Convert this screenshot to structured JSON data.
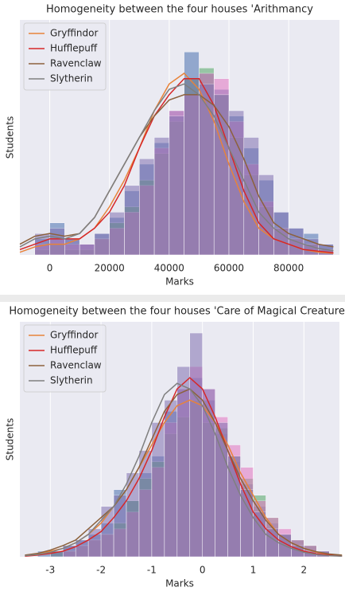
{
  "chart_data": [
    {
      "type": "histogram",
      "title": "Homogeneity between the four houses 'Arithmancy",
      "x_label": "Marks",
      "y_label": "Students",
      "bins": [
        -5000,
        0,
        5000,
        10000,
        15000,
        20000,
        25000,
        30000,
        35000,
        40000,
        45000,
        50000,
        55000,
        60000,
        65000,
        70000,
        75000,
        80000,
        85000,
        90000,
        95000
      ],
      "histograms": [
        {
          "color": "#4c72b0",
          "values": [
            3,
            6,
            3,
            2,
            4,
            7,
            12,
            17,
            21,
            27,
            38,
            34,
            31,
            26,
            20,
            14,
            8,
            5,
            4,
            2
          ]
        },
        {
          "color": "#55a868",
          "values": [
            1,
            2,
            1,
            1,
            3,
            6,
            9,
            14,
            19,
            25,
            33,
            35,
            30,
            22,
            15,
            9,
            5,
            3,
            2,
            1
          ]
        },
        {
          "color": "#e377c2",
          "values": [
            2,
            3,
            2,
            2,
            3,
            5,
            8,
            13,
            20,
            27,
            30,
            34,
            33,
            25,
            17,
            10,
            5,
            3,
            2,
            1
          ]
        },
        {
          "color": "#8172b2",
          "values": [
            4,
            5,
            3,
            2,
            4,
            8,
            13,
            18,
            22,
            26,
            33,
            32,
            30,
            27,
            22,
            15,
            8,
            5,
            3,
            2
          ]
        }
      ],
      "x": [
        -10000,
        -5000,
        0,
        5000,
        10000,
        15000,
        20000,
        25000,
        30000,
        35000,
        40000,
        45000,
        50000,
        55000,
        60000,
        65000,
        70000,
        75000,
        80000,
        85000,
        90000,
        95000
      ],
      "series": [
        {
          "name": "Gryffindor",
          "color": "#e8833a",
          "values": [
            0.5,
            1.5,
            2,
            2,
            3,
            5,
            9,
            14,
            20,
            27,
            32,
            34,
            31,
            25,
            17,
            10,
            5,
            3,
            2,
            1,
            0.5,
            0.3
          ]
        },
        {
          "name": "Hufflepuff",
          "color": "#d62728",
          "values": [
            1,
            2,
            3,
            3,
            3,
            5,
            8,
            13,
            20,
            26,
            30,
            33,
            33,
            28,
            20,
            12,
            6,
            3,
            2,
            1,
            0.7,
            0.4
          ]
        },
        {
          "name": "Ravenclaw",
          "color": "#8c613c",
          "values": [
            2,
            3.5,
            4,
            3.5,
            4,
            7,
            12,
            17,
            22,
            26,
            29,
            30,
            30,
            28,
            24,
            18,
            11,
            6,
            4,
            3,
            2,
            1.5
          ]
        },
        {
          "name": "Slytherin",
          "color": "#7f7f7f",
          "values": [
            1.5,
            3,
            3.5,
            3,
            4,
            7,
            12,
            17,
            22,
            27,
            31,
            32,
            30,
            26,
            20,
            14,
            8,
            5,
            3,
            2,
            1.2,
            0.8
          ]
        }
      ],
      "xlim": [
        -10000,
        97000
      ],
      "ylim": [
        0,
        44
      ],
      "xticks": [
        0,
        20000,
        40000,
        60000,
        80000
      ],
      "grid": true,
      "legend": "upper left"
    },
    {
      "type": "histogram",
      "title": "Homogeneity between the four houses 'Care of Magical Creatures",
      "x_label": "Marks",
      "y_label": "Students",
      "bins": [
        -3.25,
        -3,
        -2.75,
        -2.5,
        -2.25,
        -2,
        -1.75,
        -1.5,
        -1.25,
        -1,
        -0.75,
        -0.5,
        -0.25,
        0,
        0.25,
        0.5,
        0.75,
        1,
        1.25,
        1.5,
        1.75,
        2,
        2.25,
        2.5
      ],
      "histograms": [
        {
          "color": "#4c72b0",
          "values": [
            1,
            1,
            2,
            3,
            4,
            6,
            12,
            10,
            15,
            18,
            26,
            30,
            32,
            28,
            22,
            17,
            13,
            9,
            6,
            4,
            3,
            2,
            1
          ]
        },
        {
          "color": "#55a868",
          "values": [
            0,
            1,
            1,
            2,
            3,
            4,
            6,
            10,
            14,
            17,
            22,
            25,
            28,
            24,
            23,
            18,
            14,
            11,
            7,
            4,
            3,
            2,
            1
          ]
        },
        {
          "color": "#e377c2",
          "values": [
            0,
            0,
            1,
            2,
            3,
            4,
            5,
            8,
            12,
            16,
            24,
            30,
            34,
            30,
            25,
            20,
            16,
            10,
            7,
            5,
            3,
            2,
            1
          ]
        },
        {
          "color": "#8172b2",
          "values": [
            0,
            1,
            2,
            3,
            5,
            9,
            11,
            15,
            19,
            24,
            28,
            34,
            40,
            30,
            24,
            18,
            12,
            8,
            5,
            4,
            2,
            1,
            1
          ]
        }
      ],
      "x": [
        -3.5,
        -3.25,
        -3,
        -2.75,
        -2.5,
        -2.25,
        -2,
        -1.75,
        -1.5,
        -1.25,
        -1,
        -0.75,
        -0.5,
        -0.25,
        0,
        0.25,
        0.5,
        0.75,
        1,
        1.25,
        1.5,
        1.75,
        2,
        2.25,
        2.5,
        2.75
      ],
      "series": [
        {
          "name": "Gryffindor",
          "color": "#e8833a",
          "values": [
            0.2,
            0.5,
            1,
            1.5,
            2.5,
            4,
            6,
            9,
            12,
            16,
            20,
            24,
            27,
            28,
            27,
            24,
            20,
            15,
            11,
            7,
            4,
            2.5,
            1.5,
            0.8,
            0.4,
            0.2
          ]
        },
        {
          "name": "Hufflepuff",
          "color": "#d62728",
          "values": [
            0.1,
            0.3,
            0.6,
            1,
            1.8,
            3,
            4.5,
            7,
            10,
            14,
            19,
            25,
            30,
            32,
            30,
            25,
            19,
            13,
            8,
            5,
            3,
            1.8,
            1,
            0.5,
            0.3,
            0.1
          ]
        },
        {
          "name": "Ravenclaw",
          "color": "#8c613c",
          "values": [
            0.3,
            0.6,
            1.2,
            2,
            3,
            5,
            7,
            9,
            12,
            16,
            21,
            26,
            29,
            30,
            28,
            24,
            19,
            14,
            10,
            6.5,
            4,
            2.5,
            1.5,
            0.9,
            0.5,
            0.3
          ]
        },
        {
          "name": "Slytherin",
          "color": "#7f7f7f",
          "values": [
            0.2,
            0.4,
            0.8,
            1.5,
            2.5,
            4,
            6.5,
            9,
            13,
            18,
            24,
            29,
            31,
            30,
            27,
            22,
            16,
            11,
            7,
            4,
            2.5,
            1.5,
            0.8,
            0.4,
            0.2,
            0.1
          ]
        }
      ],
      "xlim": [
        -3.6,
        2.7
      ],
      "ylim": [
        0,
        42
      ],
      "xticks": [
        -3,
        -2,
        -1,
        0,
        1,
        2
      ],
      "grid": true,
      "legend": "upper left"
    }
  ]
}
